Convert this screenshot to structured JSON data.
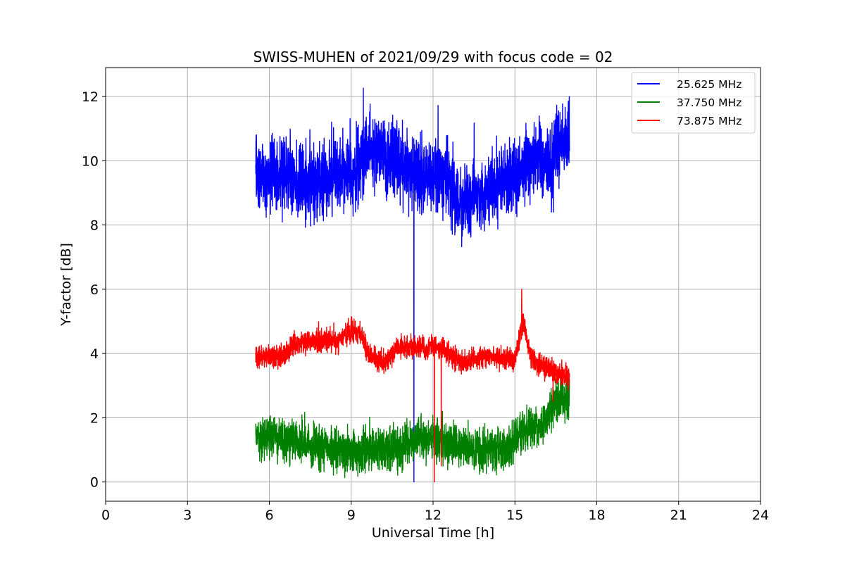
{
  "chart_data": {
    "type": "line",
    "title": "SWISS-MUHEN of 2021/09/29 with focus code = 02",
    "xlabel": "Universal Time [h]",
    "ylabel": "Y-factor [dB]",
    "xlim": [
      0,
      24
    ],
    "ylim": [
      -0.6,
      12.9
    ],
    "xticks": [
      0,
      3,
      6,
      9,
      12,
      15,
      18,
      21,
      24
    ],
    "yticks": [
      0,
      2,
      4,
      6,
      8,
      10,
      12
    ],
    "xtick_labels": [
      "0",
      "3",
      "6",
      "9",
      "12",
      "15",
      "18",
      "21",
      "24"
    ],
    "ytick_labels": [
      "0",
      "2",
      "4",
      "6",
      "8",
      "10",
      "12"
    ],
    "grid": true,
    "legend_position": "top-right",
    "series": [
      {
        "name": "25.625 MHz",
        "color": "#0000ff",
        "x_start": 5.5,
        "x_end": 17.0,
        "mean": [
          [
            5.5,
            9.6
          ],
          [
            6.5,
            9.5
          ],
          [
            7.5,
            9.2
          ],
          [
            8.5,
            9.6
          ],
          [
            9.2,
            9.5
          ],
          [
            9.5,
            10.3
          ],
          [
            10.5,
            10.0
          ],
          [
            11.5,
            9.6
          ],
          [
            12.5,
            9.4
          ],
          [
            13.0,
            8.7
          ],
          [
            14.0,
            9.0
          ],
          [
            15.0,
            9.6
          ],
          [
            16.0,
            10.0
          ],
          [
            16.4,
            9.7
          ],
          [
            16.5,
            10.6
          ],
          [
            17.0,
            10.8
          ]
        ],
        "noise": 0.55,
        "spike_up": 1.6,
        "dips": [
          {
            "x": 11.3,
            "y": 0.0
          }
        ]
      },
      {
        "name": "37.750 MHz",
        "color": "#008000",
        "x_start": 5.5,
        "x_end": 17.0,
        "mean": [
          [
            5.5,
            1.3
          ],
          [
            6.5,
            1.3
          ],
          [
            7.5,
            1.2
          ],
          [
            8.5,
            0.9
          ],
          [
            9.5,
            1.0
          ],
          [
            10.5,
            1.0
          ],
          [
            11.5,
            1.3
          ],
          [
            12.0,
            1.4
          ],
          [
            13.0,
            1.1
          ],
          [
            14.0,
            1.0
          ],
          [
            14.8,
            1.1
          ],
          [
            15.3,
            1.6
          ],
          [
            16.0,
            1.7
          ],
          [
            16.4,
            2.5
          ],
          [
            17.0,
            2.5
          ]
        ],
        "noise": 0.32,
        "spike_up": 0.5,
        "dips": []
      },
      {
        "name": "73.875 MHz",
        "color": "#ff0000",
        "x_start": 5.5,
        "x_end": 17.0,
        "mean": [
          [
            5.5,
            3.9
          ],
          [
            6.5,
            3.9
          ],
          [
            7.0,
            4.35
          ],
          [
            8.5,
            4.4
          ],
          [
            9.0,
            4.7
          ],
          [
            9.4,
            4.6
          ],
          [
            9.6,
            4.0
          ],
          [
            10.2,
            3.7
          ],
          [
            10.7,
            4.2
          ],
          [
            12.0,
            4.2
          ],
          [
            12.5,
            4.1
          ],
          [
            13.0,
            3.7
          ],
          [
            14.0,
            3.9
          ],
          [
            15.0,
            3.8
          ],
          [
            15.3,
            5.0
          ],
          [
            15.6,
            3.8
          ],
          [
            16.5,
            3.4
          ],
          [
            17.0,
            3.3
          ]
        ],
        "noise": 0.17,
        "spike_up": 0.3,
        "dips": [
          {
            "x": 12.05,
            "y": 0.0
          },
          {
            "x": 12.3,
            "y": 0.5
          },
          {
            "x": 16.4,
            "y": 2.5
          },
          {
            "x": 16.9,
            "y": 3.0
          }
        ],
        "spikes": [
          {
            "x": 15.25,
            "y": 6.0
          }
        ]
      }
    ]
  }
}
